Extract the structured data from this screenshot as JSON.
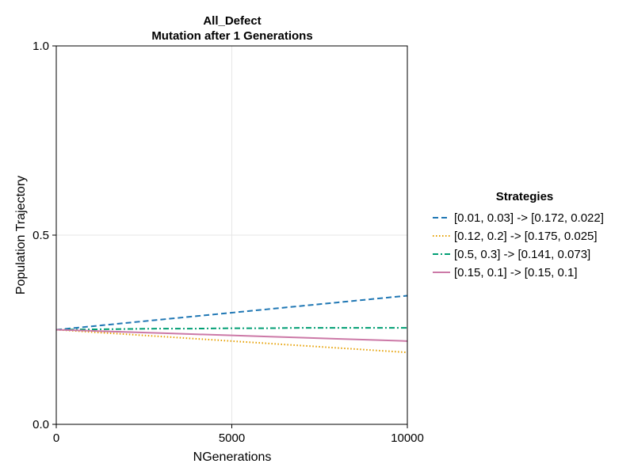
{
  "chart_data": {
    "type": "line",
    "title": "All_Defect",
    "subtitle": "Mutation after 1 Generations",
    "xlabel": "NGenerations",
    "ylabel": "Population Trajectory",
    "xlim": [
      0,
      10000
    ],
    "ylim": [
      0,
      1
    ],
    "xticks": [
      0,
      5000,
      10000
    ],
    "xtick_labels": [
      "0",
      "5000",
      "10000"
    ],
    "yticks": [
      0,
      0.5,
      1
    ],
    "ytick_labels": [
      "0.0",
      "0.5",
      "1.0"
    ],
    "grid": true,
    "legend_title": "Strategies",
    "legend_position": "right",
    "x": [
      0,
      1000,
      2000,
      3000,
      4000,
      5000,
      6000,
      7000,
      8000,
      9000,
      10000
    ],
    "series": [
      {
        "name": "[0.01, 0.03] -> [0.172, 0.022]",
        "color": "#1f77b4",
        "dash": "dashed",
        "values": [
          0.25,
          0.259,
          0.268,
          0.277,
          0.286,
          0.295,
          0.304,
          0.313,
          0.322,
          0.331,
          0.34
        ]
      },
      {
        "name": "[0.12, 0.2] -> [0.175, 0.025]",
        "color": "#e69f00",
        "dash": "dotted",
        "values": [
          0.25,
          0.244,
          0.238,
          0.232,
          0.226,
          0.22,
          0.214,
          0.208,
          0.202,
          0.196,
          0.19
        ]
      },
      {
        "name": "[0.5, 0.3] -> [0.141, 0.073]",
        "color": "#009e73",
        "dash": "dashdot",
        "values": [
          0.25,
          0.251,
          0.252,
          0.253,
          0.253,
          0.254,
          0.254,
          0.255,
          0.255,
          0.255,
          0.255
        ]
      },
      {
        "name": "[0.15, 0.1] -> [0.15, 0.1]",
        "color": "#cc79a7",
        "dash": "solid",
        "values": [
          0.25,
          0.247,
          0.244,
          0.241,
          0.238,
          0.235,
          0.232,
          0.229,
          0.226,
          0.223,
          0.22
        ]
      }
    ]
  }
}
